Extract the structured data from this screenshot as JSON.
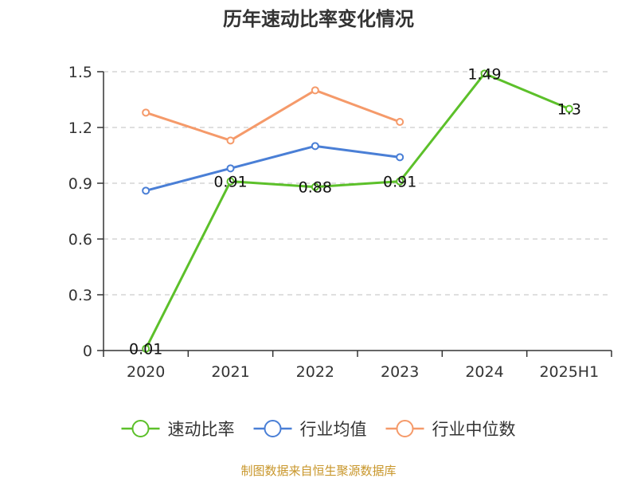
{
  "chart_data": {
    "type": "line",
    "title": "历年速动比率变化情况",
    "xlabel": "",
    "ylabel": "",
    "categories": [
      "2020",
      "2021",
      "2022",
      "2023",
      "2024",
      "2025H1"
    ],
    "ylim": [
      0,
      1.5
    ],
    "yticks": [
      "0",
      "0.3",
      "0.6",
      "0.9",
      "1.2",
      "1.5"
    ],
    "ytick_values": [
      0,
      0.3,
      0.6,
      0.9,
      1.2,
      1.5
    ],
    "grid": true,
    "legend_position": "bottom",
    "series": [
      {
        "name": "速动比率",
        "color": "#5cc02a",
        "values": [
          0.01,
          0.91,
          0.88,
          0.91,
          1.49,
          1.3
        ],
        "labels": [
          "0.01",
          "0.91",
          "0.88",
          "0.91",
          "1.49",
          "1.3"
        ]
      },
      {
        "name": "行业均值",
        "color": "#4a7fd6",
        "values": [
          0.86,
          0.98,
          1.1,
          1.04,
          null,
          null
        ]
      },
      {
        "name": "行业中位数",
        "color": "#f59a6a",
        "values": [
          1.28,
          1.13,
          1.4,
          1.23,
          null,
          null
        ]
      }
    ]
  },
  "footer": {
    "source": "制图数据来自恒生聚源数据库"
  }
}
